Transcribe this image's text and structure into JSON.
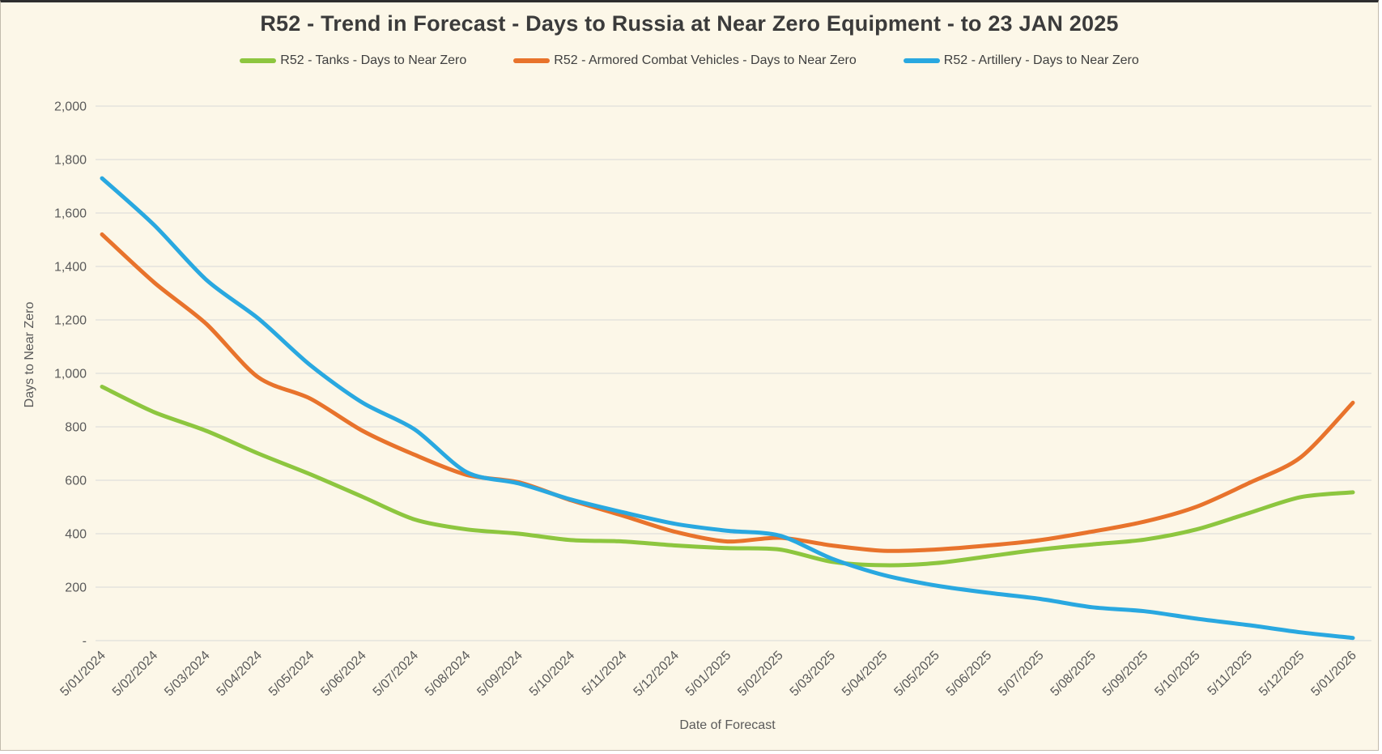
{
  "chart_data": {
    "type": "line",
    "title": "R52 - Trend in Forecast - Days to Russia at Near Zero Equipment - to 23 JAN 2025",
    "xlabel": "Date of Forecast",
    "ylabel": "Days to Near Zero",
    "ylim": [
      0,
      2000
    ],
    "y_tick_step": 200,
    "y_tick_labels": [
      "2,000",
      "1,800",
      "1,600",
      "1,400",
      "1,200",
      "1,000",
      "800",
      "600",
      "400",
      "200",
      "-"
    ],
    "grid": "horizontal",
    "legend_position": "top",
    "background_color": "#FCF7E8",
    "gridline_color": "#D8D8D8",
    "categories": [
      "5/01/2024",
      "5/02/2024",
      "5/03/2024",
      "5/04/2024",
      "5/05/2024",
      "5/06/2024",
      "5/07/2024",
      "5/08/2024",
      "5/09/2024",
      "5/10/2024",
      "5/11/2024",
      "5/12/2024",
      "5/01/2025",
      "5/02/2025",
      "5/03/2025",
      "5/04/2025",
      "5/05/2025",
      "5/06/2025",
      "5/07/2025",
      "5/08/2025",
      "5/09/2025",
      "5/10/2025",
      "5/11/2025",
      "5/12/2025",
      "5/01/2026"
    ],
    "series": [
      {
        "name": "R52 - Tanks - Days to Near Zero",
        "color": "#8DC63F",
        "values": [
          950,
          855,
          785,
          700,
          622,
          538,
          453,
          416,
          400,
          376,
          371,
          356,
          346,
          341,
          295,
          282,
          290,
          315,
          341,
          360,
          378,
          416,
          477,
          537,
          555
        ]
      },
      {
        "name": "R52 - Armored Combat Vehicles - Days to Near Zero",
        "color": "#E8732C",
        "values": [
          1520,
          1340,
          1185,
          985,
          905,
          785,
          695,
          620,
          592,
          525,
          467,
          407,
          371,
          385,
          356,
          336,
          341,
          356,
          376,
          408,
          445,
          501,
          589,
          686,
          890
        ]
      },
      {
        "name": "R52 - Artillery - Days to Near Zero",
        "color": "#29A8E0",
        "values": [
          1730,
          1555,
          1350,
          1205,
          1030,
          890,
          790,
          630,
          588,
          528,
          480,
          437,
          411,
          393,
          307,
          245,
          206,
          179,
          156,
          125,
          110,
          82,
          58,
          31,
          10
        ]
      }
    ]
  }
}
